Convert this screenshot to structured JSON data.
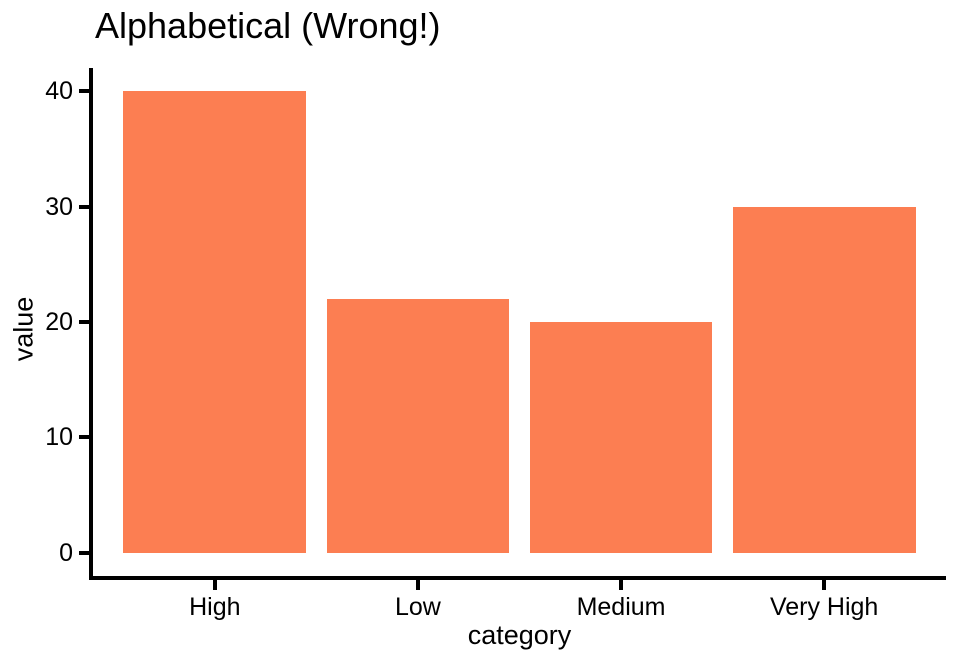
{
  "chart_data": {
    "type": "bar",
    "title": "Alphabetical (Wrong!)",
    "categories": [
      "High",
      "Low",
      "Medium",
      "Very High"
    ],
    "values": [
      40,
      22,
      20,
      30
    ],
    "xlabel": "category",
    "ylabel": "value",
    "ylim": [
      0,
      40
    ],
    "yticks": [
      0,
      10,
      20,
      30,
      40
    ],
    "y_expansion_mult": 0.05,
    "x_outer_padding": 0.6,
    "bar_relative_width": 0.9,
    "grid": false,
    "legend": "none",
    "colors": {
      "bar_fill": "#FC7E52",
      "axis": "#000000",
      "text": "#000000",
      "background": "#FFFFFF"
    }
  }
}
